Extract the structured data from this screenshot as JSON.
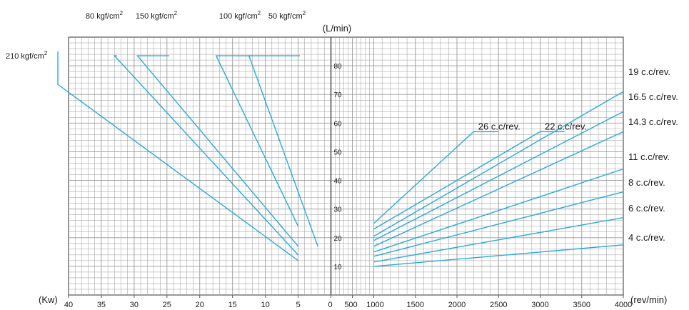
{
  "chart_data": {
    "type": "line",
    "grid": true,
    "colors": {
      "line": "#29a9e0",
      "grid": "#9a9a9a",
      "frame": "#555555",
      "text": "#1a1a1a"
    },
    "ylabel": "(L/min)",
    "ylim": [
      0,
      90
    ],
    "y_ticks": [
      10,
      20,
      30,
      40,
      50,
      60,
      70,
      80
    ],
    "y_tick_labels": [
      "10",
      "20",
      "30",
      "40",
      "50",
      "60",
      "70",
      "80"
    ],
    "left_panel": {
      "xlabel": "(Kw)",
      "xlim": [
        40,
        0
      ],
      "x_ticks": [
        40,
        35,
        30,
        25,
        20,
        15,
        10,
        5,
        0
      ],
      "x_tick_labels": [
        "40",
        "35",
        "30",
        "25",
        "20",
        "15",
        "10",
        "5",
        "0"
      ],
      "series": [
        {
          "name": "210 kgf/cm",
          "sup": "2",
          "points": [
            [
              40,
              72.5
            ],
            [
              5,
              12
            ]
          ],
          "label_pos": "left-top"
        },
        {
          "name": "80 kgf/cm",
          "sup": "2",
          "points": [
            [
              33,
              83.5
            ],
            [
              5,
              14
            ]
          ],
          "label_pos": "top"
        },
        {
          "name": "150 kgf/cm",
          "sup": "2",
          "points": [
            [
              29.5,
              83.5
            ],
            [
              5,
              17
            ]
          ],
          "label_pos": "top"
        },
        {
          "name": "100 kgf/cm",
          "sup": "2",
          "points": [
            [
              17.5,
              83.5
            ],
            [
              5,
              24
            ]
          ],
          "label_pos": "top"
        },
        {
          "name": "50 kgf/cm",
          "sup": "2",
          "points": [
            [
              12.5,
              83.5
            ],
            [
              2,
              17
            ]
          ],
          "label_pos": "top"
        }
      ]
    },
    "right_panel": {
      "xlabel": "(rev/min)",
      "xlim": [
        0,
        4000
      ],
      "x_ticks": [
        0,
        500,
        1000,
        1500,
        2000,
        2500,
        3000,
        3500,
        4000
      ],
      "x_tick_labels": [
        "",
        "500",
        "1000",
        "1500",
        "2000",
        "2500",
        "3000",
        "3500",
        "4000"
      ],
      "series": [
        {
          "name": "26 c.c/rev.",
          "points": [
            [
              1000,
              25
            ],
            [
              2200,
              57
            ]
          ],
          "label_pos": "inner"
        },
        {
          "name": "22 c.c/rev.",
          "points": [
            [
              1000,
              23
            ],
            [
              3000,
              57
            ]
          ],
          "label_pos": "inner"
        },
        {
          "name": "19 c.c/rev.",
          "points": [
            [
              1000,
              20.5
            ],
            [
              4000,
              71
            ]
          ],
          "label_pos": "right"
        },
        {
          "name": "16.5 c.c/rev.",
          "points": [
            [
              1000,
              19
            ],
            [
              4000,
              64
            ]
          ],
          "label_pos": "right"
        },
        {
          "name": "14.3 c.c/rev.",
          "points": [
            [
              1000,
              17
            ],
            [
              4000,
              57
            ]
          ],
          "label_pos": "right"
        },
        {
          "name": "11 c.c/rev.",
          "points": [
            [
              1000,
              15
            ],
            [
              4000,
              44
            ]
          ],
          "label_pos": "right"
        },
        {
          "name": "8 c.c/rev.",
          "points": [
            [
              1000,
              13.5
            ],
            [
              4000,
              36
            ]
          ],
          "label_pos": "right"
        },
        {
          "name": "6 c.c/rev.",
          "points": [
            [
              1000,
              11.5
            ],
            [
              4000,
              27
            ]
          ],
          "label_pos": "right"
        },
        {
          "name": "4 c.c/rev.",
          "points": [
            [
              1000,
              10
            ],
            [
              4000,
              17.5
            ]
          ],
          "label_pos": "right"
        }
      ]
    }
  }
}
